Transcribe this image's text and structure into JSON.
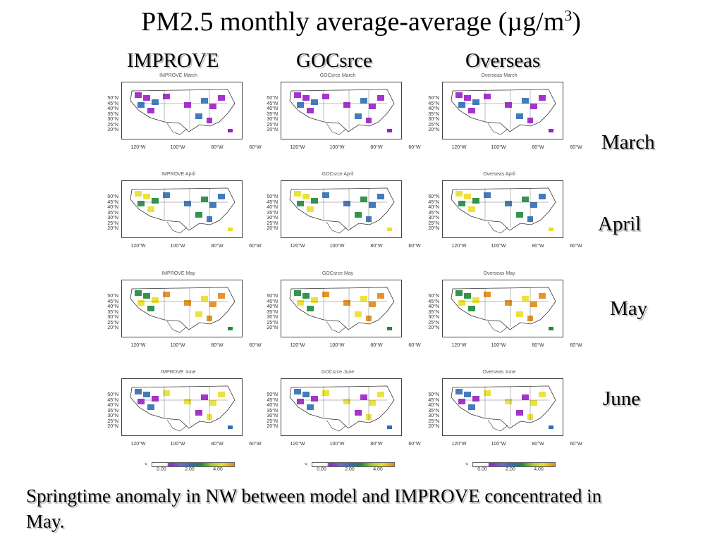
{
  "title": {
    "text": "PM2.5 monthly average-average (µg/m",
    "superscript": "3",
    "suffix": ")"
  },
  "columns": [
    {
      "key": "improve",
      "label": "IMPROVE"
    },
    {
      "key": "gocsrce",
      "label": "GOCsrce"
    },
    {
      "key": "overseas",
      "label": "Overseas"
    }
  ],
  "months": [
    {
      "label": "March",
      "panel_titles": [
        "IMPROVE March",
        "GOCsrce March",
        "Overseas March"
      ]
    },
    {
      "label": "April",
      "panel_titles": [
        "IMPROVE April",
        "GOCsrce April",
        "Overseas April"
      ]
    },
    {
      "label": "May",
      "panel_titles": [
        "IMPROVE May",
        "GOCsrce May",
        "Overseas May"
      ]
    },
    {
      "label": "June",
      "panel_titles": [
        "IMPROVE June",
        "GOCsrce June",
        "Overseas June"
      ]
    }
  ],
  "lat_labels": [
    "50°N",
    "45°N",
    "40°N",
    "35°N",
    "30°N",
    "25°N",
    "20°N"
  ],
  "lon_labels": [
    "120°W",
    "100°W",
    "80°W",
    "60°W"
  ],
  "colorbar": {
    "less_than": "<",
    "ticks": [
      "0.00",
      "2.00",
      "4.00"
    ],
    "colors": {
      "low": "#9b1fc7",
      "mid_low": "#2f6db4",
      "mid": "#1e8a3a",
      "mid_high": "#eadf2a",
      "high": "#e08a16"
    }
  },
  "caption": "Springtime anomaly in NW between model and IMPROVE concentrated in May."
}
